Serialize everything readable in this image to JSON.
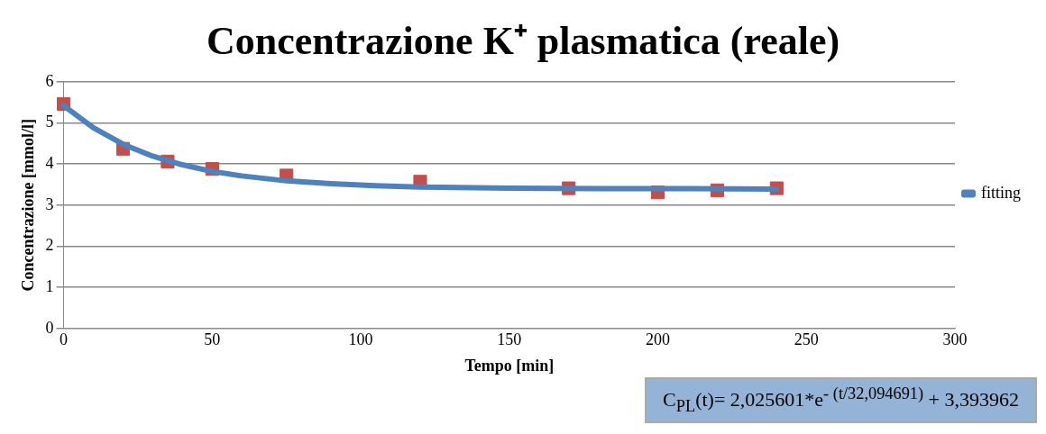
{
  "chart_data": {
    "type": "scatter",
    "title": "Concentrazione K⁺ plasmatica (reale)",
    "xlabel": "Tempo [min]",
    "ylabel": "Concentrazione [mmol/l]",
    "xlim": [
      0,
      300
    ],
    "xticks": [
      0,
      50,
      100,
      150,
      200,
      250,
      300
    ],
    "ylim": [
      0,
      6
    ],
    "yticks": [
      0,
      1,
      2,
      3,
      4,
      5,
      6
    ],
    "grid": "y",
    "legend": "right",
    "series": [
      {
        "marker": "square",
        "color": "#c0504d",
        "x": [
          0,
          20,
          35,
          50,
          75,
          120,
          170,
          200,
          220,
          240
        ],
        "values": [
          5.46,
          4.37,
          4.06,
          3.88,
          3.72,
          3.57,
          3.41,
          3.31,
          3.36,
          3.41
        ]
      },
      {
        "type": "line",
        "marker": "none",
        "name": "fitting",
        "color": "#4f81bd",
        "x": [
          0,
          10,
          20,
          30,
          40,
          50,
          60,
          75,
          90,
          105,
          120,
          150,
          180,
          210,
          240
        ],
        "values": [
          5.42,
          4.88,
          4.48,
          4.19,
          3.98,
          3.82,
          3.71,
          3.59,
          3.52,
          3.47,
          3.44,
          3.41,
          3.4,
          3.4,
          3.39
        ]
      }
    ],
    "annotations": [
      "C$_{PL}$(t)= 2,025601*e$^{- (t/32,094691)}$ + 3,393962"
    ]
  }
}
